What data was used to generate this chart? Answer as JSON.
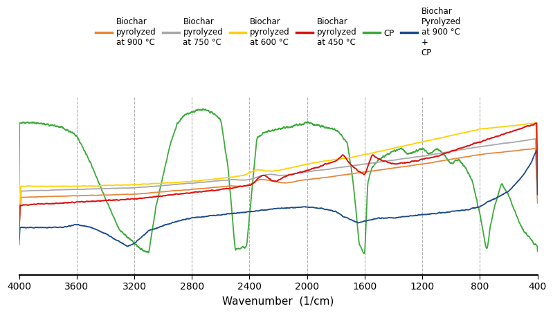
{
  "xlabel": "Wavenumber  (1/cm)",
  "x_ticks": [
    4000,
    3600,
    3200,
    2800,
    2400,
    2000,
    1600,
    1200,
    800,
    400
  ],
  "vlines": [
    3600,
    3200,
    2800,
    2400,
    2000,
    1600,
    1200,
    800
  ],
  "colors": {
    "biochar_900": "#E8873A",
    "biochar_750": "#A8A8A8",
    "biochar_600": "#FFD000",
    "biochar_450": "#DD1111",
    "cp": "#3DAA3D",
    "biochar_900_cp": "#1A4A8A"
  },
  "legend_labels": [
    "Biochar\npyrolyzed\nat 900 °C",
    "Biochar\npyrolyzed\nat 750 °C",
    "Biochar\npyrolyzed\nat 600 °C",
    "Biochar\npyrolyzed\nat 450 °C",
    "CP",
    "Biochar\nPyrolyzed\nat 900 °C\n+\nCP"
  ],
  "background_color": "#ffffff"
}
